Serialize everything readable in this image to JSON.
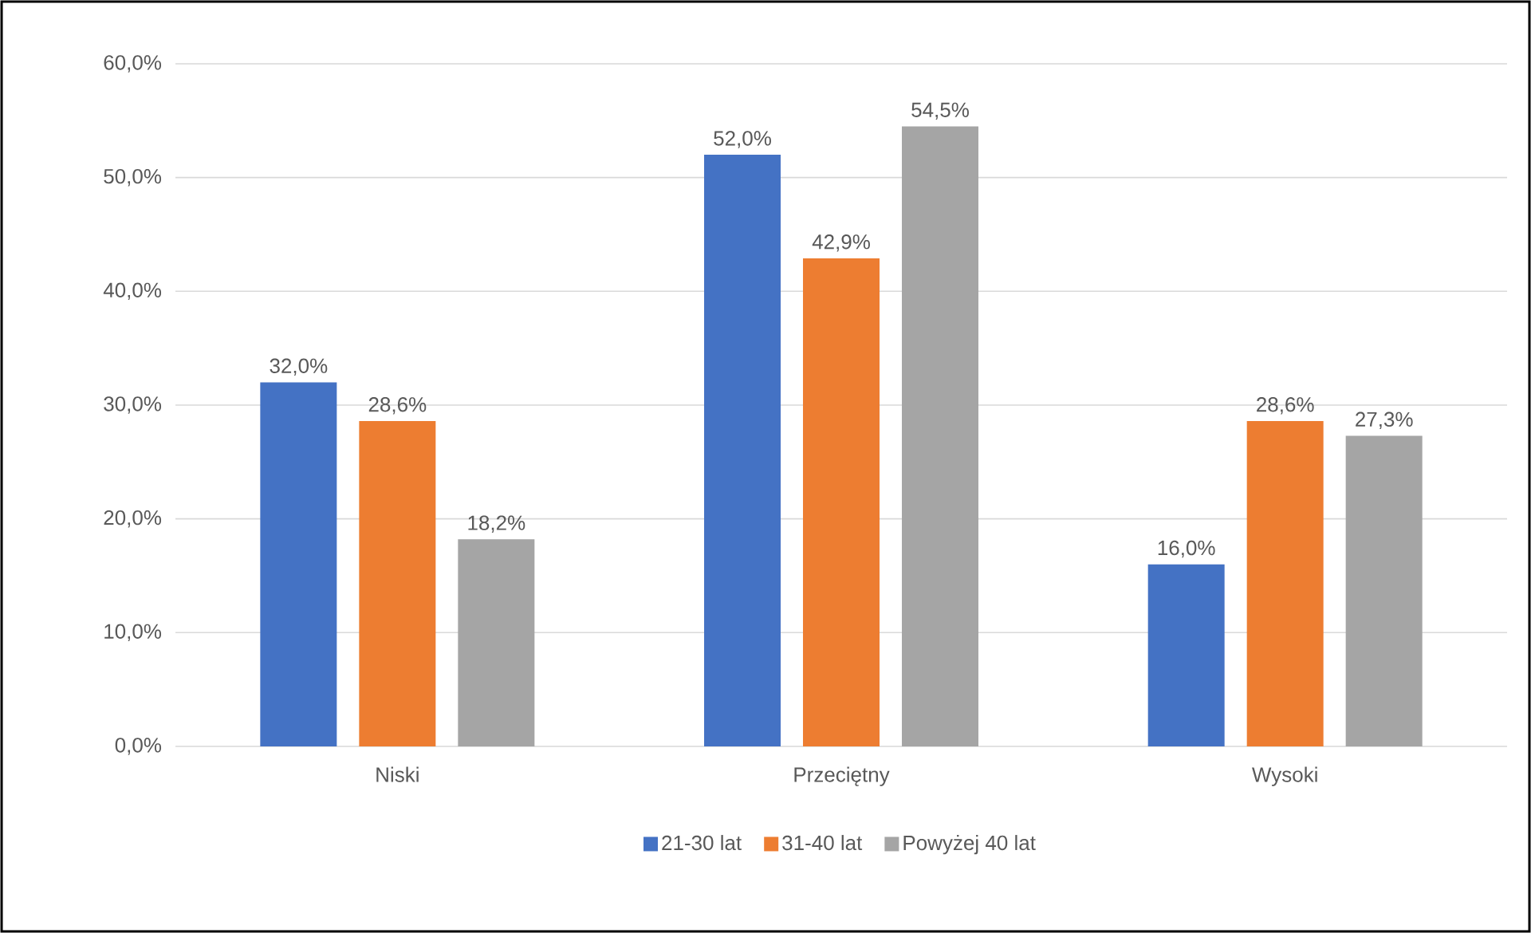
{
  "chart_data": {
    "type": "bar",
    "categories": [
      "Niski",
      "Przeciętny",
      "Wysoki"
    ],
    "series": [
      {
        "name": "21-30 lat",
        "color": "#4472c4",
        "values": [
          32.0,
          52.0,
          16.0
        ],
        "value_labels": [
          "32,0%",
          "52,0%",
          "16,0%"
        ]
      },
      {
        "name": "31-40 lat",
        "color": "#ed7d31",
        "values": [
          28.6,
          42.9,
          28.6
        ],
        "value_labels": [
          "28,6%",
          "42,9%",
          "28,6%"
        ]
      },
      {
        "name": "Powyżej 40 lat",
        "color": "#a5a5a5",
        "values": [
          18.2,
          54.5,
          27.3
        ],
        "value_labels": [
          "18,2%",
          "54,5%",
          "27,3%"
        ]
      }
    ],
    "ylim": [
      0,
      60
    ],
    "yticks": [
      {
        "value": 0,
        "label": "0,0%"
      },
      {
        "value": 10,
        "label": "10,0%"
      },
      {
        "value": 20,
        "label": "20,0%"
      },
      {
        "value": 30,
        "label": "30,0%"
      },
      {
        "value": 40,
        "label": "40,0%"
      },
      {
        "value": 50,
        "label": "50,0%"
      },
      {
        "value": 60,
        "label": "60,0%"
      }
    ],
    "grid": "y",
    "legend": "bottom"
  }
}
